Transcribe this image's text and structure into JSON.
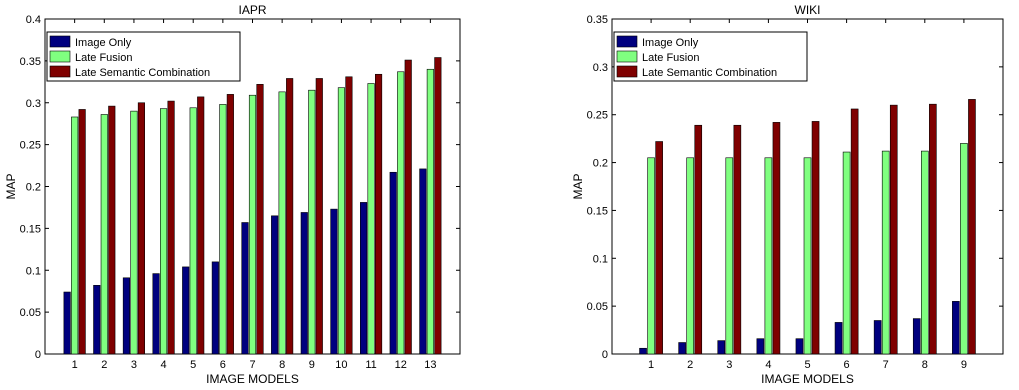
{
  "chart_data": [
    {
      "type": "bar",
      "title": "IAPR",
      "xlabel": "IMAGE MODELS",
      "ylabel": "MAP",
      "ylim": [
        0,
        0.4
      ],
      "yticks": [
        "0",
        "0.05",
        "0.1",
        "0.15",
        "0.2",
        "0.25",
        "0.3",
        "0.35",
        "0.4"
      ],
      "categories": [
        "1",
        "2",
        "3",
        "4",
        "5",
        "6",
        "7",
        "8",
        "9",
        "10",
        "11",
        "12",
        "13"
      ],
      "legend_position": "top-left",
      "grid": false,
      "series": [
        {
          "name": "Image Only",
          "color": "#00007f",
          "values": [
            0.074,
            0.082,
            0.091,
            0.096,
            0.104,
            0.11,
            0.157,
            0.165,
            0.169,
            0.173,
            0.181,
            0.217,
            0.221
          ]
        },
        {
          "name": "Late Fusion",
          "color": "#80ff80",
          "values": [
            0.283,
            0.286,
            0.29,
            0.293,
            0.294,
            0.298,
            0.309,
            0.313,
            0.315,
            0.318,
            0.323,
            0.337,
            0.34
          ]
        },
        {
          "name": "Late Semantic Combination",
          "color": "#7f0000",
          "values": [
            0.292,
            0.296,
            0.3,
            0.302,
            0.307,
            0.31,
            0.322,
            0.329,
            0.329,
            0.331,
            0.334,
            0.351,
            0.354
          ]
        }
      ]
    },
    {
      "type": "bar",
      "title": "WIKI",
      "xlabel": "IMAGE MODELS",
      "ylabel": "MAP",
      "ylim": [
        0,
        0.35
      ],
      "yticks": [
        "0",
        "0.05",
        "0.1",
        "0.15",
        "0.2",
        "0.25",
        "0.3",
        "0.35"
      ],
      "categories": [
        "1",
        "2",
        "3",
        "4",
        "5",
        "6",
        "7",
        "8",
        "9"
      ],
      "legend_position": "top-left",
      "grid": false,
      "series": [
        {
          "name": "Image Only",
          "color": "#00007f",
          "values": [
            0.006,
            0.012,
            0.014,
            0.016,
            0.016,
            0.033,
            0.035,
            0.037,
            0.055
          ]
        },
        {
          "name": "Late Fusion",
          "color": "#80ff80",
          "values": [
            0.205,
            0.205,
            0.205,
            0.205,
            0.205,
            0.211,
            0.212,
            0.212,
            0.22
          ]
        },
        {
          "name": "Late Semantic Combination",
          "color": "#7f0000",
          "values": [
            0.222,
            0.239,
            0.239,
            0.242,
            0.243,
            0.256,
            0.26,
            0.261,
            0.266
          ]
        }
      ]
    }
  ]
}
